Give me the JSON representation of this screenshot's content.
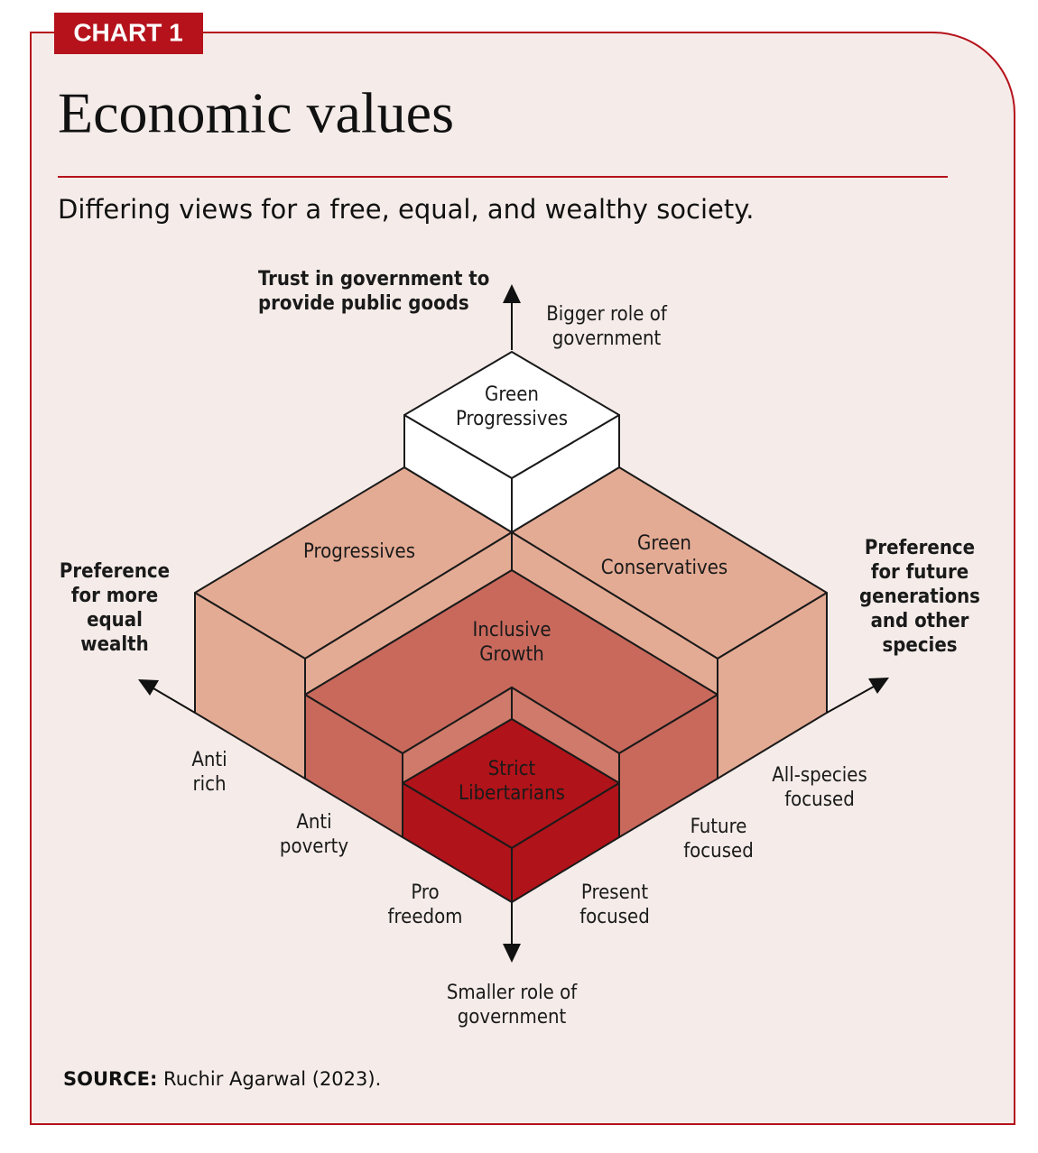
{
  "header": {
    "tag": "CHART 1",
    "title": "Economic values",
    "subtitle": "Differing views for a free, equal, and wealthy society."
  },
  "axes": {
    "vertical": {
      "title": [
        "Trust in government to",
        "provide public goods"
      ],
      "top": [
        "Bigger role of",
        "government"
      ],
      "bottom": [
        "Smaller role of",
        "government"
      ]
    },
    "left": {
      "title": [
        "Preference",
        "for more",
        "equal",
        "wealth"
      ],
      "ticks": [
        [
          "Anti",
          "rich"
        ],
        [
          "Anti",
          "poverty"
        ],
        [
          "Pro",
          "freedom"
        ]
      ]
    },
    "right": {
      "title": [
        "Preference",
        "for future",
        "generations",
        "and other",
        "species"
      ],
      "ticks": [
        [
          "All-species",
          "focused"
        ],
        [
          "Future",
          "focused"
        ],
        [
          "Present",
          "focused"
        ]
      ]
    }
  },
  "groups": [
    [
      "Green",
      "Progressives"
    ],
    [
      "Progressives"
    ],
    [
      "Green",
      "Conservatives"
    ],
    [
      "Inclusive",
      "Growth"
    ],
    [
      "Strict",
      "Libertarians"
    ]
  ],
  "source": {
    "label": "SOURCE:",
    "text": "Ruchir Agarwal (2023)."
  }
}
